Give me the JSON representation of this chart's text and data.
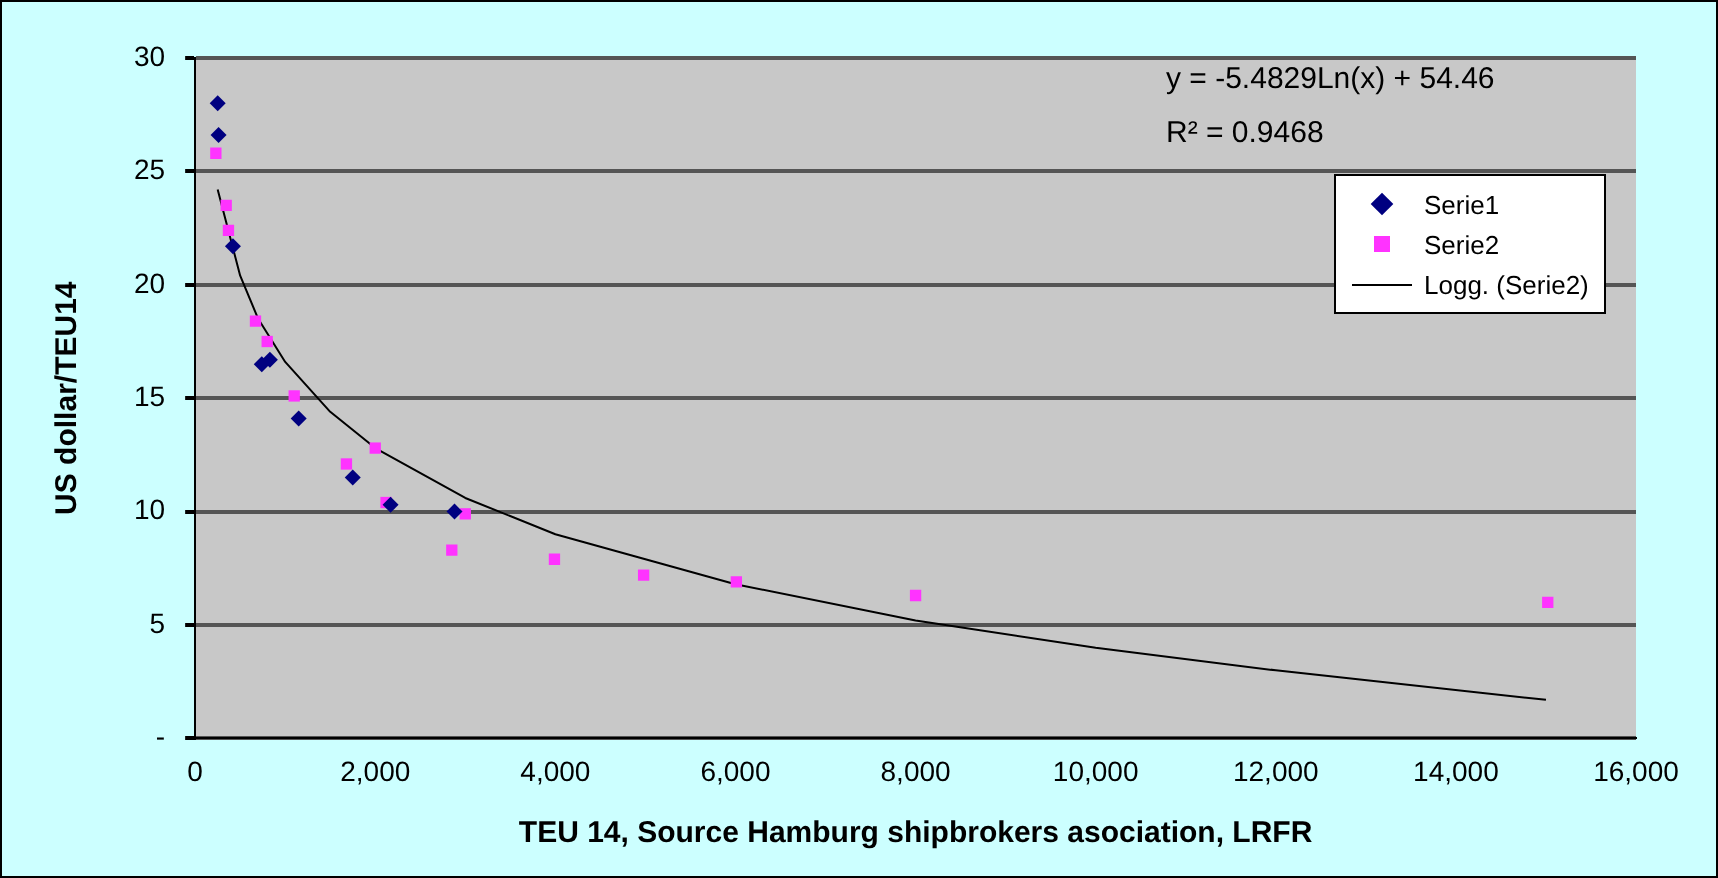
{
  "chart_data": {
    "type": "scatter",
    "xlabel": "TEU 14, Source Hamburg shipbrokers asociation, LRFR",
    "ylabel": "US dollar/TEU14",
    "xlim": [
      0,
      16000
    ],
    "xticks": [
      {
        "value": 0,
        "label": "0"
      },
      {
        "value": 2000,
        "label": "2,000"
      },
      {
        "value": 4000,
        "label": "4,000"
      },
      {
        "value": 6000,
        "label": "6,000"
      },
      {
        "value": 8000,
        "label": "8,000"
      },
      {
        "value": 10000,
        "label": "10,000"
      },
      {
        "value": 12000,
        "label": "12,000"
      },
      {
        "value": 14000,
        "label": "14,000"
      },
      {
        "value": 16000,
        "label": "16,000"
      }
    ],
    "ylim": [
      0,
      30
    ],
    "yticks": [
      {
        "value": 0,
        "label": "-"
      },
      5,
      10,
      15,
      20,
      25,
      30
    ],
    "grid": "y",
    "legend": "top right",
    "annotations": [
      "y = -5.4829Ln(x) + 54.46",
      "R² = 0.9468"
    ],
    "series": [
      {
        "name": "Serie1",
        "marker": "diamond",
        "color": "#000080",
        "x": [
          250,
          260,
          420,
          740,
          830,
          1150,
          1750,
          2170,
          2880
        ],
        "values": [
          28.0,
          26.6,
          21.7,
          16.5,
          16.7,
          14.1,
          11.5,
          10.3,
          10.0
        ]
      },
      {
        "name": "Serie2",
        "marker": "square",
        "color": "#ff33ff",
        "x": [
          230,
          345,
          370,
          670,
          800,
          1100,
          1680,
          2000,
          2120,
          3000,
          2850,
          3990,
          4980,
          6010,
          8000,
          15020
        ],
        "values": [
          25.8,
          23.5,
          22.4,
          18.4,
          17.5,
          15.1,
          12.1,
          12.8,
          10.4,
          9.9,
          8.3,
          7.9,
          7.2,
          6.9,
          6.3,
          6.0
        ]
      },
      {
        "name": "Logg. (Serie2)",
        "type": "line",
        "marker": "none",
        "line_style": "solid",
        "color": "#000000",
        "x": [
          250,
          500,
          700,
          1000,
          1500,
          2000,
          3000,
          4000,
          6000,
          8000,
          10000,
          12000,
          15000
        ],
        "values": [
          24.2,
          20.4,
          18.5,
          16.6,
          14.4,
          12.8,
          10.6,
          9.0,
          6.8,
          5.2,
          4.0,
          3.0,
          1.7
        ]
      }
    ]
  }
}
